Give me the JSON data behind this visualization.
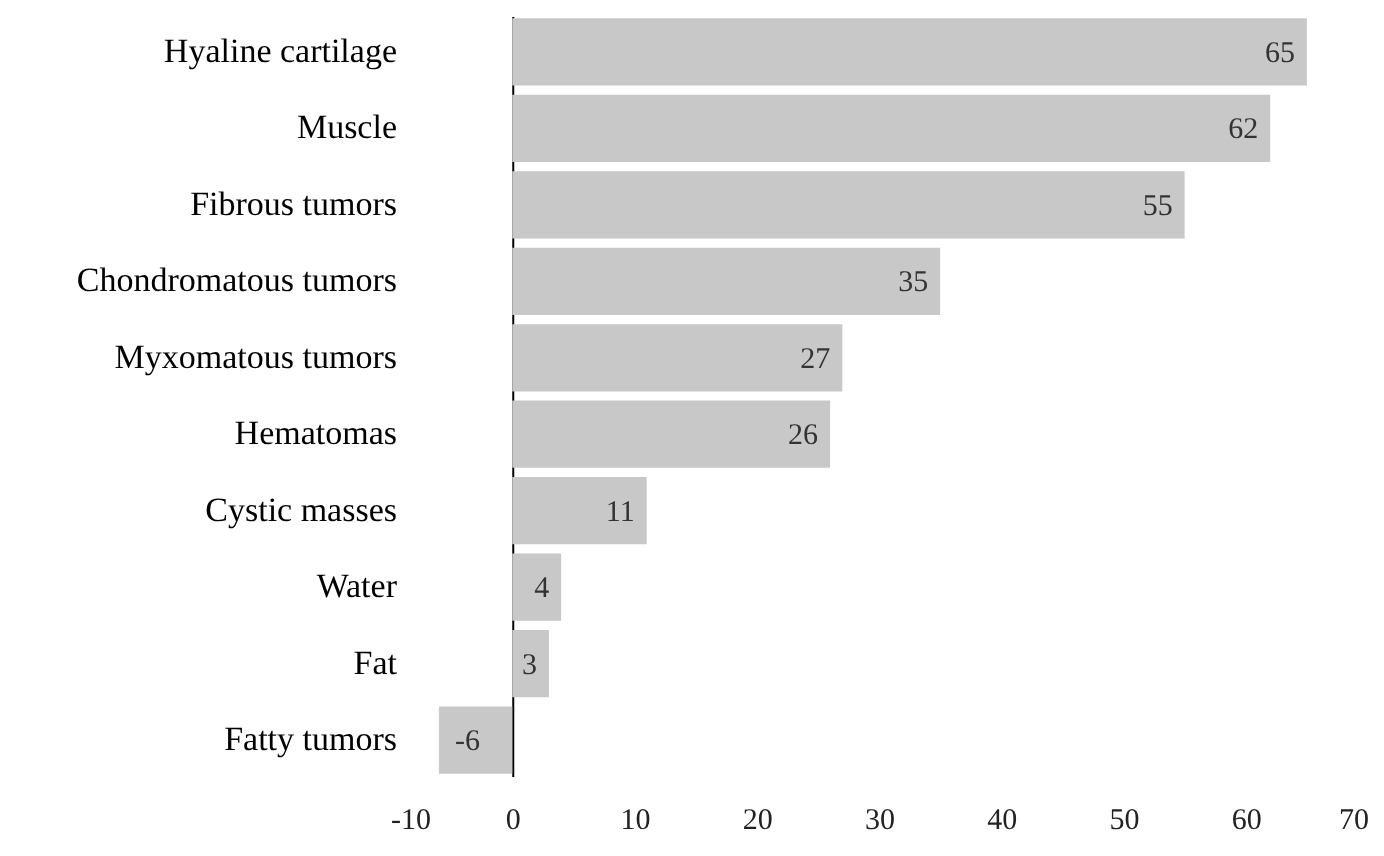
{
  "chart_data": {
    "type": "bar",
    "orientation": "horizontal",
    "categories": [
      "Hyaline cartilage",
      "Muscle",
      "Fibrous tumors",
      "Chondromatous tumors",
      "Myxomatous tumors",
      "Hematomas",
      "Cystic masses",
      "Water",
      "Fat",
      "Fatty tumors"
    ],
    "values": [
      65,
      62,
      55,
      35,
      27,
      26,
      11,
      4,
      3,
      -6
    ],
    "color": "#c8c8c8",
    "xlim": [
      -10,
      70
    ],
    "xticks": [
      -10,
      0,
      10,
      20,
      30,
      40,
      50,
      60,
      70
    ],
    "data_labels": true
  }
}
